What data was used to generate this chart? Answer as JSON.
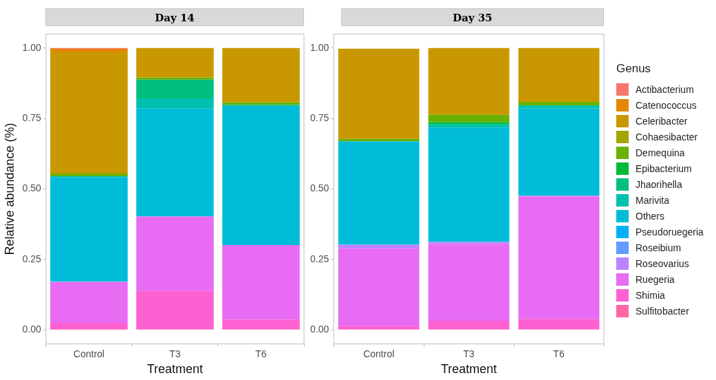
{
  "chart_data": [
    {
      "type": "bar",
      "stacked": true,
      "title": "Day 14",
      "xlabel": "Treatment",
      "ylabel": "Relative abundance (%)",
      "legend_title": "Genus",
      "categories": [
        "Control",
        "T3",
        "T6"
      ],
      "ylim": [
        -0.05,
        1.05
      ],
      "yticks": [
        {
          "value": 0,
          "label": "0.00"
        },
        {
          "value": 0.25,
          "label": "0.25"
        },
        {
          "value": 0.5,
          "label": "0.50"
        },
        {
          "value": 0.75,
          "label": "0.75"
        },
        {
          "value": 1,
          "label": "1.00"
        }
      ],
      "grid": false,
      "legend": "right",
      "series": [
        {
          "name": "Sulfitobacter",
          "color": "#ff67a4",
          "values": [
            0.003,
            0.002,
            0.002
          ]
        },
        {
          "name": "Shimia",
          "color": "#fd61d1",
          "values": [
            0.022,
            0.136,
            0.034
          ]
        },
        {
          "name": "Ruegeria",
          "color": "#e76bf3",
          "values": [
            0.145,
            0.264,
            0.265
          ]
        },
        {
          "name": "Roseovarius",
          "color": "#b983ff",
          "values": [
            0,
            0,
            0
          ]
        },
        {
          "name": "Roseibium",
          "color": "#619cff",
          "values": [
            0,
            0,
            0
          ]
        },
        {
          "name": "Pseudoruegeria",
          "color": "#00b0f6",
          "values": [
            0.002,
            0,
            0
          ]
        },
        {
          "name": "Others",
          "color": "#00bcd8",
          "values": [
            0.37,
            0.383,
            0.491
          ]
        },
        {
          "name": "Marivita",
          "color": "#00c0af",
          "values": [
            0.003,
            0.036,
            0.006
          ]
        },
        {
          "name": "Jhaorihella",
          "color": "#00bf7d",
          "values": [
            0,
            0.067,
            0
          ]
        },
        {
          "name": "Epibacterium",
          "color": "#00ba38",
          "values": [
            0,
            0,
            0
          ]
        },
        {
          "name": "Demequina",
          "color": "#6bb100",
          "values": [
            0.01,
            0.008,
            0.01
          ]
        },
        {
          "name": "Cohaesibacter",
          "color": "#a3a500",
          "values": [
            0,
            0,
            0
          ]
        },
        {
          "name": "Celeribacter",
          "color": "#c99800",
          "values": [
            0.43,
            0.104,
            0.192
          ]
        },
        {
          "name": "Catenococcus",
          "color": "#e58700",
          "values": [
            0.012,
            0,
            0
          ]
        },
        {
          "name": "Actibacterium",
          "color": "#f8766d",
          "values": [
            0.003,
            0,
            0
          ]
        }
      ]
    },
    {
      "type": "bar",
      "stacked": true,
      "title": "Day 35",
      "xlabel": "Treatment",
      "categories": [
        "Control",
        "T3",
        "T6"
      ],
      "ylim": [
        -0.05,
        1.05
      ],
      "yticks": [
        {
          "value": 0,
          "label": "0.00"
        },
        {
          "value": 0.25,
          "label": "0.25"
        },
        {
          "value": 0.5,
          "label": "0.50"
        },
        {
          "value": 0.75,
          "label": "0.75"
        },
        {
          "value": 1,
          "label": "1.00"
        }
      ],
      "grid": false,
      "series": [
        {
          "color": "#ff67a4",
          "values": [
            0.002,
            0.002,
            0.002
          ]
        },
        {
          "color": "#fd61d1",
          "values": [
            0.011,
            0.03,
            0.037
          ]
        },
        {
          "color": "#e76bf3",
          "values": [
            0.276,
            0.273,
            0.434
          ]
        },
        {
          "color": "#b983ff",
          "values": [
            0.013,
            0.007,
            0.003
          ]
        },
        {
          "color": "#00bcd8",
          "values": [
            0.367,
            0.405,
            0.309
          ]
        },
        {
          "color": "#00c0af",
          "values": [
            null,
            0.012,
            0.012
          ]
        },
        {
          "color": "#00ba38",
          "values": [
            0,
            0.008,
            0
          ]
        },
        {
          "color": "#6bb100",
          "values": [
            0.009,
            0.026,
            0.012
          ]
        },
        {
          "color": "#c99800",
          "values": [
            0.32,
            0.237,
            0.191
          ]
        }
      ]
    }
  ]
}
